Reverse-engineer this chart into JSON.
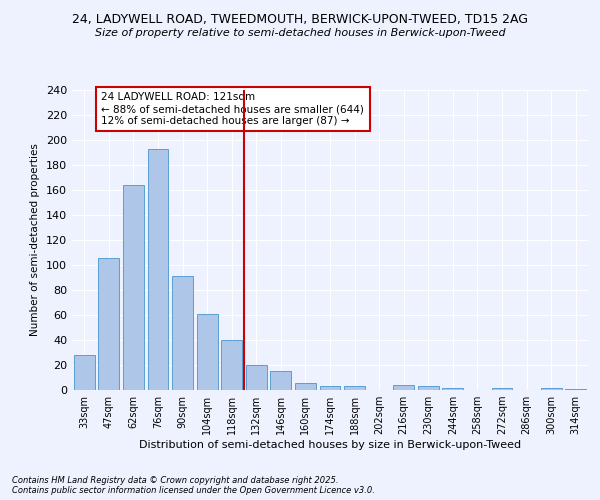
{
  "title1": "24, LADYWELL ROAD, TWEEDMOUTH, BERWICK-UPON-TWEED, TD15 2AG",
  "title2": "Size of property relative to semi-detached houses in Berwick-upon-Tweed",
  "xlabel": "Distribution of semi-detached houses by size in Berwick-upon-Tweed",
  "ylabel": "Number of semi-detached properties",
  "categories": [
    "33sqm",
    "47sqm",
    "62sqm",
    "76sqm",
    "90sqm",
    "104sqm",
    "118sqm",
    "132sqm",
    "146sqm",
    "160sqm",
    "174sqm",
    "188sqm",
    "202sqm",
    "216sqm",
    "230sqm",
    "244sqm",
    "258sqm",
    "272sqm",
    "286sqm",
    "300sqm",
    "314sqm"
  ],
  "values": [
    28,
    106,
    164,
    193,
    91,
    61,
    40,
    20,
    15,
    6,
    3,
    3,
    0,
    4,
    3,
    2,
    0,
    2,
    0,
    2,
    1
  ],
  "bar_color": "#aec6e8",
  "bar_edge_color": "#5a9fd4",
  "vline_x": 6.5,
  "vline_color": "#cc0000",
  "annotation_text": "24 LADYWELL ROAD: 121sqm\n← 88% of semi-detached houses are smaller (644)\n12% of semi-detached houses are larger (87) →",
  "annotation_box_color": "#ffffff",
  "annotation_box_edge_color": "#cc0000",
  "ylim": [
    0,
    240
  ],
  "yticks": [
    0,
    20,
    40,
    60,
    80,
    100,
    120,
    140,
    160,
    180,
    200,
    220,
    240
  ],
  "background_color": "#eef2ff",
  "grid_color": "#ffffff",
  "footnote": "Contains HM Land Registry data © Crown copyright and database right 2025.\nContains public sector information licensed under the Open Government Licence v3.0."
}
